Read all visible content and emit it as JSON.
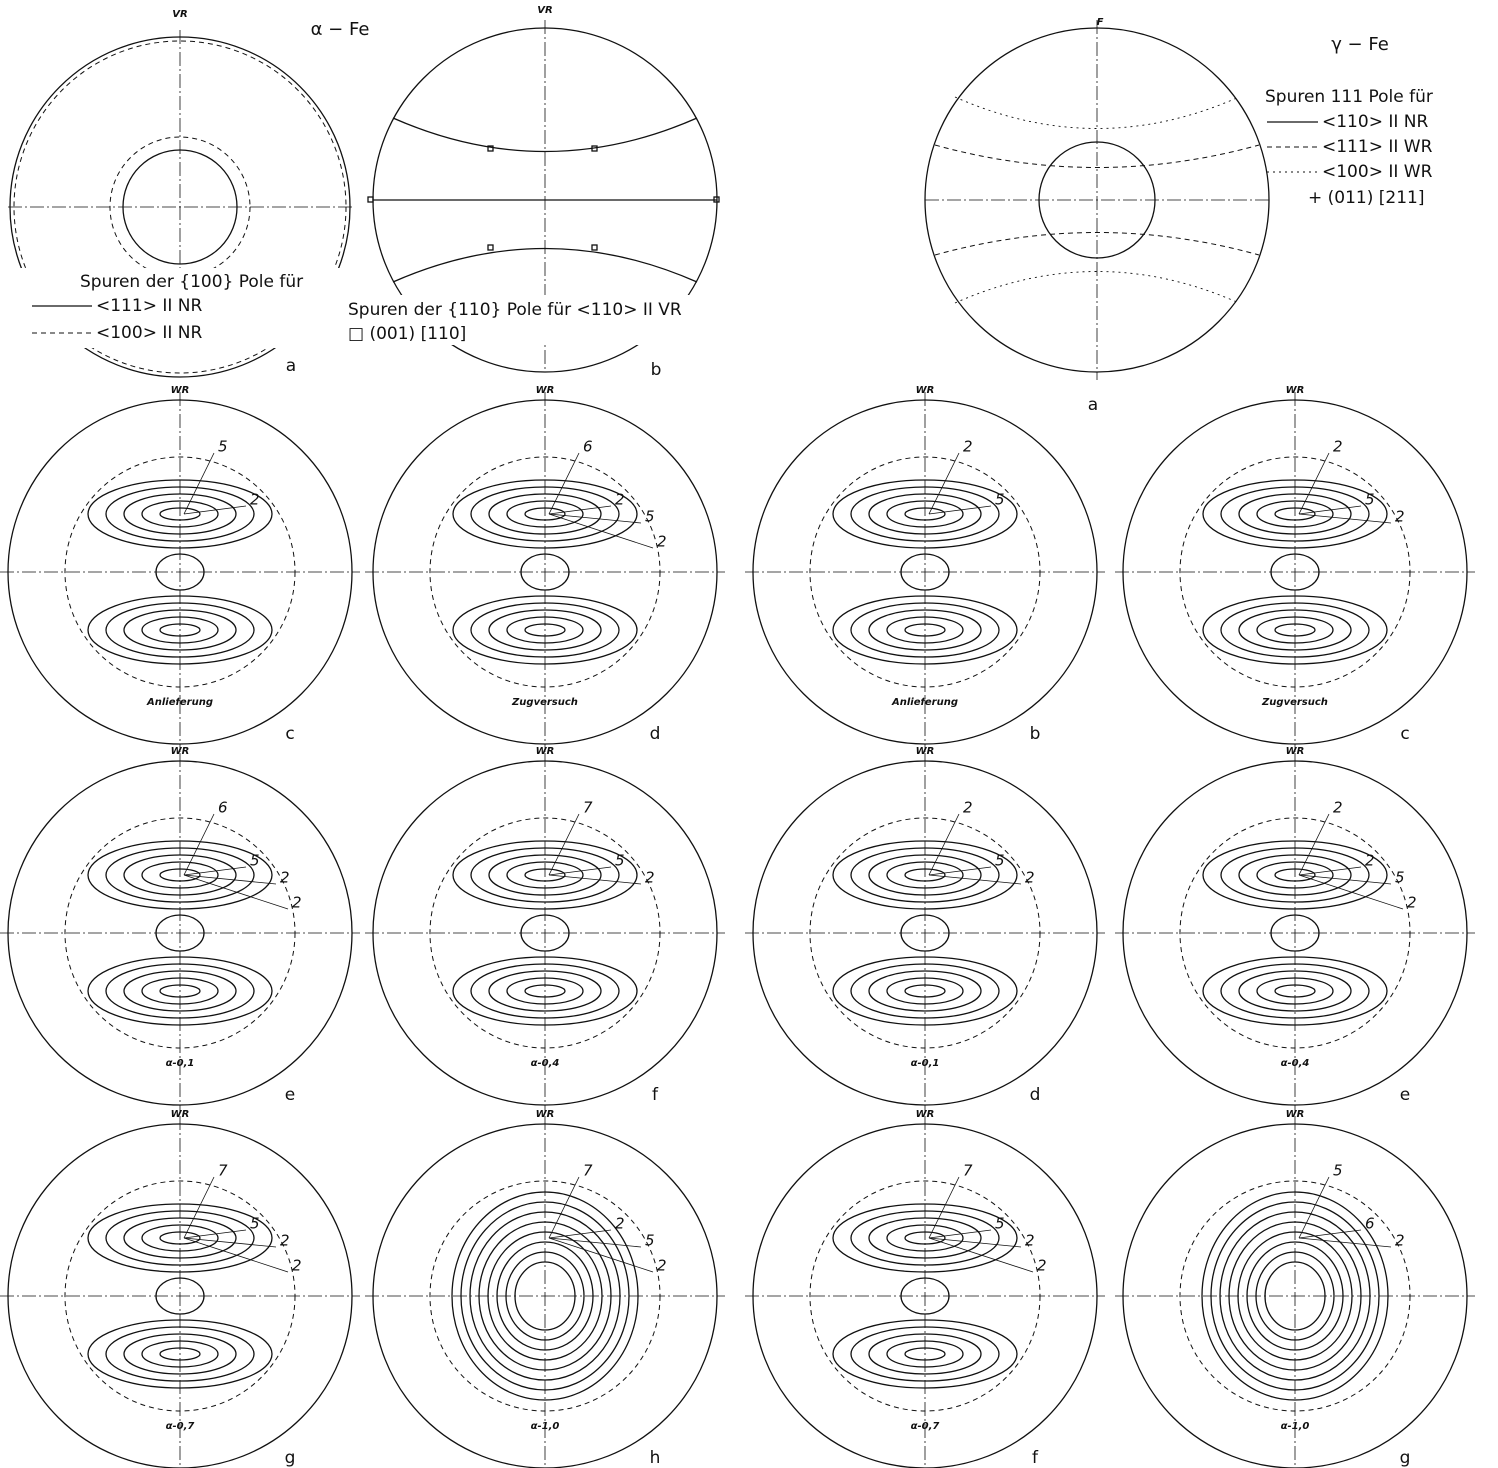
{
  "alpha": {
    "title": "α − Fe",
    "panel_a": {
      "top_label": "VR",
      "legend_title": "Spuren der {100} Pole für",
      "legend": [
        "<111>   II NR",
        "<100>   II NR"
      ],
      "letter": "a"
    },
    "panel_b": {
      "top_label": "VR",
      "legend": [
        "Spuren der {110} Pole für <110> II VR",
        "□ (001)  [110]"
      ],
      "letter": "b"
    },
    "plots": [
      {
        "top_label": "WR",
        "caption": "Anlieferung",
        "contour_labels": [
          5,
          2
        ],
        "letter": "c"
      },
      {
        "top_label": "WR",
        "caption": "Zugversuch",
        "contour_labels": [
          6,
          2,
          5,
          2
        ],
        "letter": "d"
      },
      {
        "top_label": "WR",
        "caption": "α-0,1",
        "contour_labels": [
          6,
          5,
          2,
          2
        ],
        "letter": "e"
      },
      {
        "top_label": "WR",
        "caption": "α-0,4",
        "contour_labels": [
          7,
          5,
          2
        ],
        "letter": "f"
      },
      {
        "top_label": "WR",
        "caption": "α-0,7",
        "contour_labels": [
          7,
          5,
          2,
          2
        ],
        "letter": "g"
      },
      {
        "top_label": "WR",
        "caption": "α-1,0",
        "contour_labels": [
          7,
          2,
          5,
          2
        ],
        "letter": "h"
      }
    ]
  },
  "gamma": {
    "title": "γ − Fe",
    "panel_a": {
      "top_label": "F",
      "legend": [
        "Spuren   111   Pole für",
        "<110> II NR",
        "<111> II WR",
        "<100> II WR",
        "+ (011)  [211]"
      ],
      "letter": "a"
    },
    "plots": [
      {
        "top_label": "WR",
        "caption": "Anlieferung",
        "contour_labels": [
          2,
          5
        ],
        "letter": "b"
      },
      {
        "top_label": "WR",
        "caption": "Zugversuch",
        "contour_labels": [
          2,
          5,
          2
        ],
        "letter": "c"
      },
      {
        "top_label": "WR",
        "caption": "α-0,1",
        "contour_labels": [
          2,
          5,
          2
        ],
        "letter": "d"
      },
      {
        "top_label": "WR",
        "caption": "α-0,4",
        "contour_labels": [
          2,
          2,
          5,
          2
        ],
        "letter": "e"
      },
      {
        "top_label": "WR",
        "caption": "α-0,7",
        "contour_labels": [
          7,
          5,
          2,
          2
        ],
        "letter": "f"
      },
      {
        "top_label": "WR",
        "caption": "α-1,0",
        "contour_labels": [
          5,
          6,
          2
        ],
        "letter": "g"
      }
    ]
  }
}
